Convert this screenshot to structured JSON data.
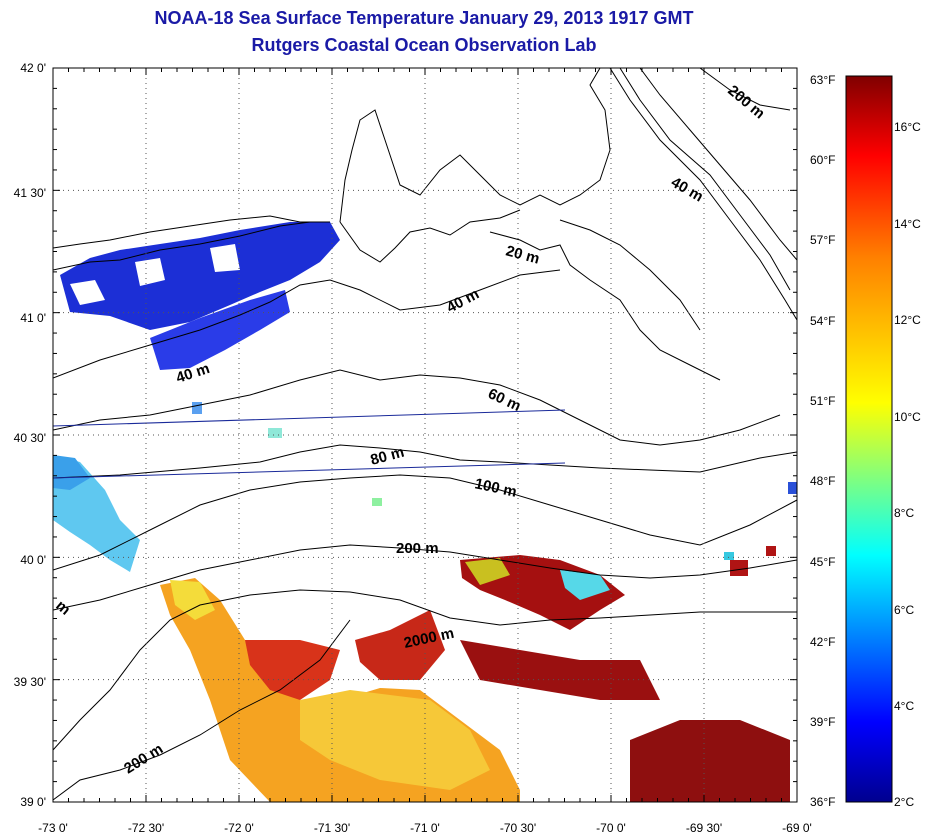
{
  "title": "NOAA-18 Sea Surface Temperature January 29, 2013 1917 GMT",
  "subtitle": "Rutgers Coastal Ocean Observation Lab",
  "map": {
    "lon_ticks": [
      "-73 0'",
      "-72 30'",
      "-72 0'",
      "-71 30'",
      "-71 0'",
      "-70 30'",
      "-70 0'",
      "-69 30'",
      "-69 0'"
    ],
    "lat_ticks": [
      "42 0'",
      "41 30'",
      "41 0'",
      "40 30'",
      "40 0'",
      "39 30'",
      "39 0'"
    ],
    "isobath_labels": [
      "200 m",
      "40 m",
      "20 m",
      "40 m",
      "40 m",
      "60 m",
      "80 m",
      "100 m",
      "200 m",
      "2000 m",
      "200 m",
      "m"
    ],
    "land_color": "#ffffff",
    "grid": "dotted"
  },
  "colorbar": {
    "fahrenheit_labels": [
      "63°F",
      "60°F",
      "57°F",
      "54°F",
      "51°F",
      "48°F",
      "45°F",
      "42°F",
      "39°F",
      "36°F"
    ],
    "celsius_labels": [
      "16°C",
      "14°C",
      "12°C",
      "10°C",
      "8°C",
      "6°C",
      "4°C",
      "2°C"
    ],
    "colormap": [
      "#00008f",
      "#0000ff",
      "#0080ff",
      "#00ffff",
      "#80ff80",
      "#ffff00",
      "#ff8000",
      "#ff0000",
      "#800000"
    ]
  }
}
